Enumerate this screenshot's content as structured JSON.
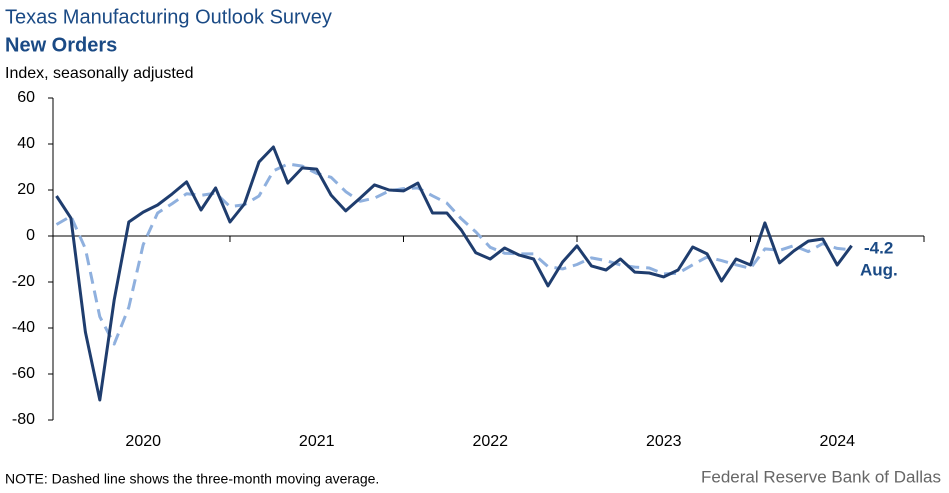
{
  "chart_data": {
    "type": "line",
    "title": "Texas Manufacturing Outlook Survey",
    "subtitle": "New Orders",
    "ylabel": "Index, seasonally adjusted",
    "note": "NOTE: Dashed line shows the three-month  moving average.",
    "source": "Federal Reserve Bank of Dallas",
    "annotations": [
      "-4.2",
      "Aug."
    ],
    "xlim": [
      2019.98,
      2025.0
    ],
    "xticks": [
      2021,
      2022,
      2023,
      2024,
      2025
    ],
    "xlabels": [
      {
        "value": 2020.5,
        "label": "2020"
      },
      {
        "value": 2021.5,
        "label": "2021"
      },
      {
        "value": 2022.5,
        "label": "2022"
      },
      {
        "value": 2023.5,
        "label": "2023"
      },
      {
        "value": 2024.5,
        "label": "2024"
      }
    ],
    "ylim": [
      -80,
      60
    ],
    "yticks": [
      -80,
      -60,
      -40,
      -20,
      0,
      20,
      40,
      60
    ],
    "x": [
      2020.0,
      2020.083,
      2020.167,
      2020.25,
      2020.333,
      2020.417,
      2020.5,
      2020.583,
      2020.667,
      2020.75,
      2020.833,
      2020.917,
      2021.0,
      2021.083,
      2021.167,
      2021.25,
      2021.333,
      2021.417,
      2021.5,
      2021.583,
      2021.667,
      2021.75,
      2021.833,
      2021.917,
      2022.0,
      2022.083,
      2022.167,
      2022.25,
      2022.333,
      2022.417,
      2022.5,
      2022.583,
      2022.667,
      2022.75,
      2022.833,
      2022.917,
      2023.0,
      2023.083,
      2023.167,
      2023.25,
      2023.333,
      2023.417,
      2023.5,
      2023.583,
      2023.667,
      2023.75,
      2023.833,
      2023.917,
      2024.0,
      2024.083,
      2024.167,
      2024.25,
      2024.333,
      2024.417,
      2024.5,
      2024.583
    ],
    "series": [
      {
        "color": "#1f3d6e",
        "dashed": false,
        "values": [
          17.4,
          7.8,
          -41.8,
          -71.3,
          -27.8,
          6.1,
          10.4,
          13.5,
          18.3,
          23.5,
          11.3,
          20.9,
          6.1,
          13.9,
          32.2,
          38.7,
          23.0,
          29.6,
          29.1,
          17.8,
          10.9,
          16.5,
          22.2,
          20.0,
          19.6,
          23.0,
          10.0,
          10.0,
          2.6,
          -7.3,
          -10.0,
          -5.2,
          -8.3,
          -10.0,
          -21.7,
          -11.3,
          -4.3,
          -13.0,
          -14.8,
          -10.0,
          -15.7,
          -16.1,
          -17.8,
          -14.8,
          -4.8,
          -7.8,
          -19.6,
          -10.0,
          -12.6,
          5.7,
          -11.7,
          -6.5,
          -2.2,
          -1.3,
          -12.6,
          -4.2
        ]
      },
      {
        "color": "#8fb0de",
        "dashed": true,
        "values": [
          5.0,
          8.6,
          -5.5,
          -35.1,
          -47.0,
          -31.0,
          -3.8,
          10.0,
          14.1,
          18.4,
          17.7,
          18.6,
          12.8,
          13.6,
          17.4,
          28.3,
          31.3,
          30.4,
          27.2,
          25.5,
          19.3,
          15.1,
          16.5,
          19.6,
          20.6,
          20.9,
          17.5,
          14.3,
          7.5,
          1.8,
          -4.9,
          -7.5,
          -7.8,
          -7.8,
          -13.3,
          -14.3,
          -12.4,
          -9.5,
          -10.7,
          -12.6,
          -13.5,
          -13.9,
          -16.5,
          -16.2,
          -12.5,
          -9.1,
          -10.7,
          -12.5,
          -14.1,
          -5.6,
          -6.2,
          -4.2,
          -6.8,
          -3.3,
          -5.4,
          -6.0
        ]
      }
    ]
  }
}
